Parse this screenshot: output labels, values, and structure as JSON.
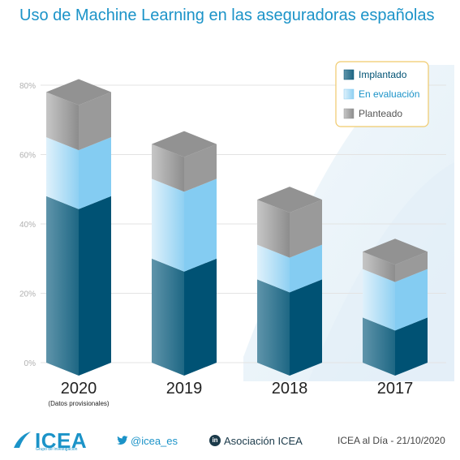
{
  "title": "Uso de Machine Learning en las aseguradoras españolas",
  "chart_data": {
    "type": "bar",
    "stacked": true,
    "style": "3d",
    "categories": [
      "2020",
      "2019",
      "2018",
      "2017"
    ],
    "category_notes": [
      "(Datos provisionales)",
      "",
      "",
      ""
    ],
    "series": [
      {
        "name": "Implantado",
        "values": [
          48,
          30,
          24,
          13
        ],
        "color": "#005274"
      },
      {
        "name": "En evaluación",
        "values": [
          17,
          23,
          10,
          14
        ],
        "color": "#84ccf2"
      },
      {
        "name": "Planteado",
        "values": [
          13,
          10,
          13,
          5
        ],
        "color": "#9a9a9a"
      }
    ],
    "ylim": [
      0,
      80
    ],
    "yticks": [
      "0%",
      "20%",
      "40%",
      "60%",
      "80%"
    ],
    "ytick_values": [
      0,
      20,
      40,
      60,
      80
    ],
    "grid": true,
    "legend": "top-right"
  },
  "footer": {
    "logo": "ICEA",
    "logo_sub": "Grupo de Investigación",
    "twitter": "@icea_es",
    "twitter_icon": "bird-icon",
    "linkedin": "Asociación ICEA",
    "linkedin_icon": "in",
    "date": "ICEA al Día - 21/10/2020"
  }
}
